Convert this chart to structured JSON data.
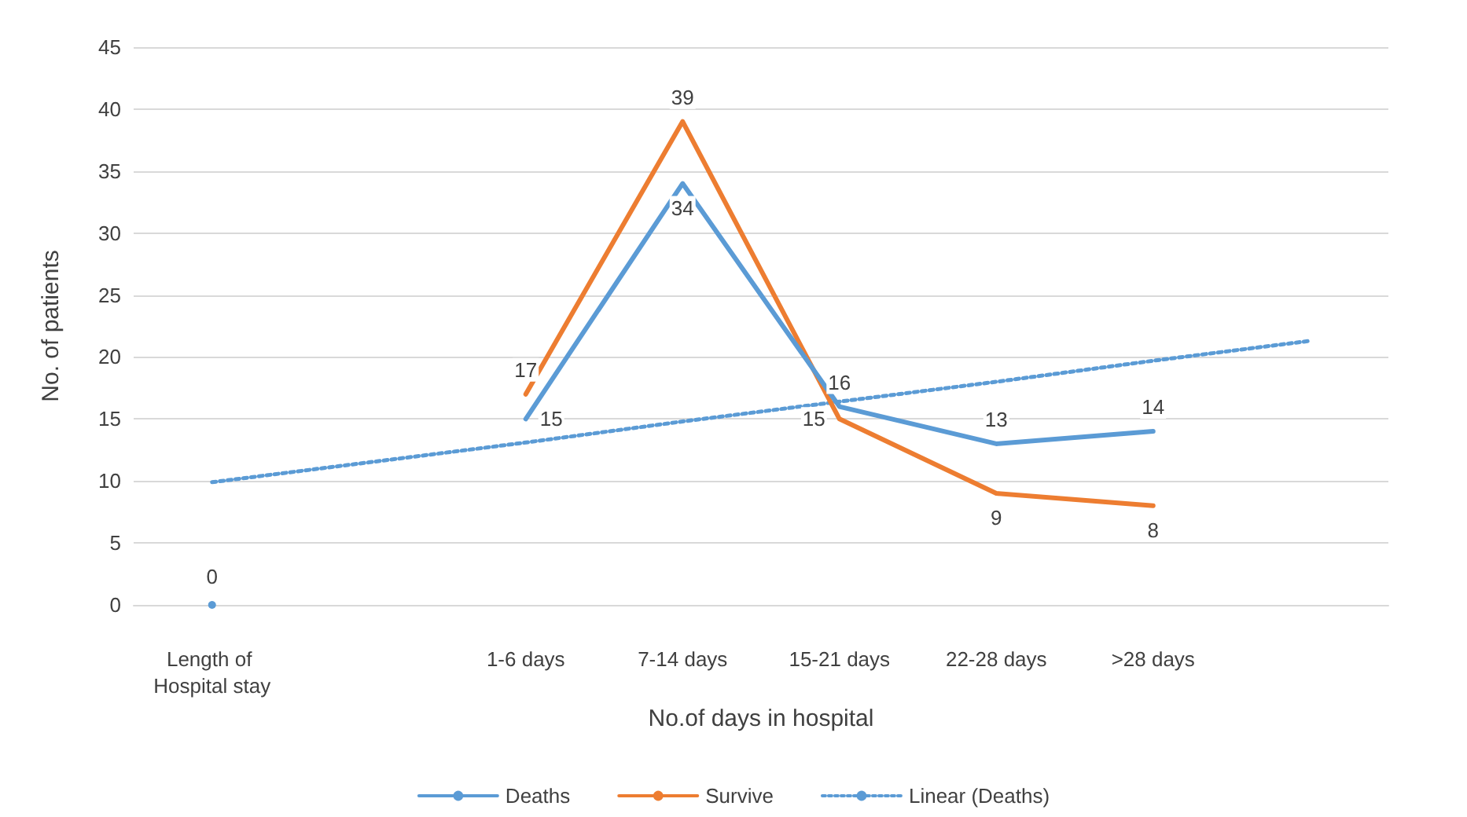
{
  "chart_data": {
    "type": "line",
    "xlabel": "No.of days in hospital",
    "ylabel": "No. of patients",
    "categories": [
      "Length of Hospital stay",
      null,
      "1-6 days",
      "7-14 days",
      "15-21 days",
      "22-28 days",
      ">28 days",
      null
    ],
    "series": [
      {
        "name": "Deaths",
        "color": "#5b9bd5",
        "values": [
          0,
          null,
          15,
          34,
          16,
          13,
          14,
          null
        ],
        "value_labels": [
          "0",
          null,
          "15",
          "34",
          "16",
          "13",
          "14",
          null
        ]
      },
      {
        "name": "Survive",
        "color": "#ed7d31",
        "values": [
          null,
          null,
          17,
          39,
          15,
          9,
          8,
          null
        ],
        "value_labels": [
          null,
          null,
          "17",
          "39",
          "15",
          "9",
          "8",
          null
        ]
      },
      {
        "name": "Linear (Deaths)",
        "color": "#5b9bd5",
        "line_style": "dotted",
        "values": [
          9.9,
          11.5,
          13.1,
          14.8,
          16.4,
          18.0,
          19.7,
          21.3
        ]
      }
    ],
    "ylim": [
      0,
      45
    ],
    "yticks": [
      0,
      5,
      10,
      15,
      20,
      25,
      30,
      35,
      40,
      45
    ],
    "grid": "y",
    "legend": "bottom"
  }
}
